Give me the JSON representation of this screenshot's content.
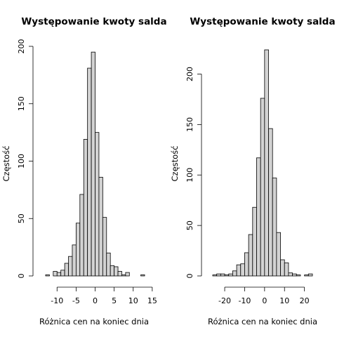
{
  "chart_data": [
    {
      "type": "bar",
      "title": "Występowanie kwoty salda",
      "xlabel": "Różnica cen na koniec dnia",
      "ylabel": "Częstość",
      "x_ticks": [
        -10,
        -5,
        0,
        5,
        10,
        15
      ],
      "y_ticks": [
        0,
        50,
        100,
        150,
        200
      ],
      "bin_width": 1,
      "bin_start": -13,
      "values": [
        1,
        0,
        4,
        3,
        5,
        11,
        17,
        27,
        46,
        71,
        119,
        181,
        195,
        125,
        86,
        51,
        20,
        9,
        8,
        4,
        1,
        3,
        0,
        0,
        0,
        1
      ],
      "xlim": [
        -13,
        13
      ],
      "ylim": [
        0,
        200
      ]
    },
    {
      "type": "bar",
      "title": "Występowanie kwoty salda",
      "xlabel": "Różnica cen na koniec dnia",
      "ylabel": "Częstość",
      "x_ticks": [
        -20,
        -10,
        0,
        10,
        20
      ],
      "y_ticks": [
        0,
        50,
        100,
        150,
        200
      ],
      "bin_width": 2,
      "bin_start": -26,
      "values": [
        1,
        2,
        2,
        1,
        2,
        5,
        11,
        12,
        23,
        41,
        68,
        117,
        176,
        224,
        146,
        97,
        43,
        16,
        13,
        3,
        2,
        1,
        0,
        1,
        2
      ],
      "xlim": [
        -26,
        24
      ],
      "ylim": [
        0,
        225
      ]
    }
  ]
}
